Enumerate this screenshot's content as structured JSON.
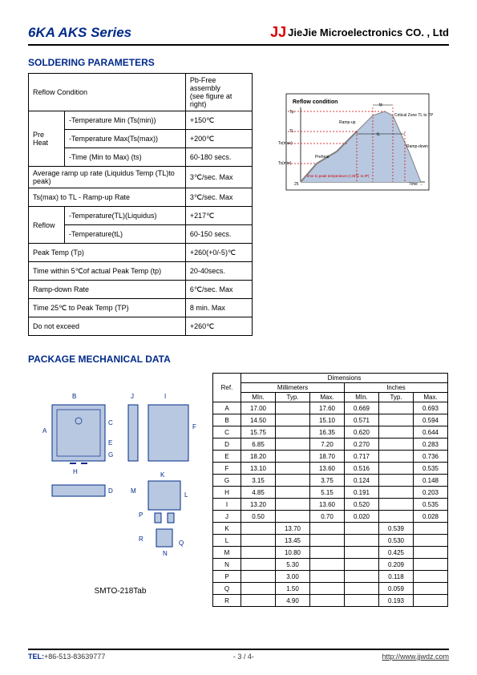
{
  "header": {
    "series": "6KA AKS Series",
    "logo": "JJ",
    "company": "JieJie Microelectronics CO. , Ltd"
  },
  "section1": {
    "title": "SOLDERING PARAMETERS",
    "reflow_cond": "Reflow Condition",
    "pb_free": "Pb-Free assembly\n(see figure at right)",
    "preheat": "Pre Heat",
    "preheat_rows": [
      {
        "l": "-Temperature Min (Ts(min))",
        "v": "+150℃"
      },
      {
        "l": "-Temperature Max(Ts(max))",
        "v": "+200℃"
      },
      {
        "l": "-Time (Min to Max) (ts)",
        "v": "60-180 secs."
      }
    ],
    "avg_ramp": "Average ramp up rate (Liquidus Temp (TL)to peak)",
    "avg_ramp_v": "3℃/sec. Max",
    "ts_ramp": "Ts(max) to TL - Ramp-up Rate",
    "ts_ramp_v": "3℃/sec. Max",
    "reflow": "Reflow",
    "reflow_rows": [
      {
        "l": "-Temperature(TL)(Liquidus)",
        "v": "+217℃"
      },
      {
        "l": "-Temperature(tL)",
        "v": "60-150 secs."
      }
    ],
    "rest": [
      {
        "l": "Peak Temp (Tp)",
        "v": "+260(+0/-5)℃"
      },
      {
        "l": "Time within 5℃of actual Peak Temp (tp)",
        "v": "20-40secs."
      },
      {
        "l": "Ramp-down Rate",
        "v": "6℃/sec. Max"
      },
      {
        "l": "Time 25℃ to Peak Temp (TP)",
        "v": "8 min. Max"
      },
      {
        "l": "Do not exceed",
        "v": "+260℃"
      }
    ],
    "diag": {
      "title": "Reflow condition",
      "labels": [
        "Tp",
        "TL",
        "Ts(max)",
        "Ts(min)",
        "25",
        "Ramp-up",
        "tL",
        "tp",
        "Critical Zone TL to TP",
        "Ramp-down",
        "Preheat",
        "time to peak temperature (t 25℃ to tP)",
        "Time →"
      ]
    }
  },
  "section2": {
    "title": "PACKAGE MECHANICAL DATA",
    "pkg_label": "SMTO-218Tab",
    "dim_hdr": {
      "top": "Dimensions",
      "ref": "Ref.",
      "mm": "Millimeters",
      "in": "Inches",
      "min": "MIn.",
      "typ": "Typ.",
      "max": "Max."
    },
    "rows": [
      {
        "ref": "A",
        "mm_min": "17.00",
        "mm_typ": "",
        "mm_max": "17.60",
        "in_min": "0.669",
        "in_typ": "",
        "in_max": "0.693"
      },
      {
        "ref": "B",
        "mm_min": "14.50",
        "mm_typ": "",
        "mm_max": "15.10",
        "in_min": "0.571",
        "in_typ": "",
        "in_max": "0.594"
      },
      {
        "ref": "C",
        "mm_min": "15.75",
        "mm_typ": "",
        "mm_max": "16.35",
        "in_min": "0.620",
        "in_typ": "",
        "in_max": "0.644"
      },
      {
        "ref": "D",
        "mm_min": "6.85",
        "mm_typ": "",
        "mm_max": "7.20",
        "in_min": "0.270",
        "in_typ": "",
        "in_max": "0.283"
      },
      {
        "ref": "E",
        "mm_min": "18.20",
        "mm_typ": "",
        "mm_max": "18.70",
        "in_min": "0.717",
        "in_typ": "",
        "in_max": "0.736"
      },
      {
        "ref": "F",
        "mm_min": "13.10",
        "mm_typ": "",
        "mm_max": "13.60",
        "in_min": "0.516",
        "in_typ": "",
        "in_max": "0.535"
      },
      {
        "ref": "G",
        "mm_min": "3.15",
        "mm_typ": "",
        "mm_max": "3.75",
        "in_min": "0.124",
        "in_typ": "",
        "in_max": "0.148"
      },
      {
        "ref": "H",
        "mm_min": "4.85",
        "mm_typ": "",
        "mm_max": "5.15",
        "in_min": "0.191",
        "in_typ": "",
        "in_max": "0.203"
      },
      {
        "ref": "I",
        "mm_min": "13.20",
        "mm_typ": "",
        "mm_max": "13.60",
        "in_min": "0.520",
        "in_typ": "",
        "in_max": "0.535"
      },
      {
        "ref": "J",
        "mm_min": "0.50",
        "mm_typ": "",
        "mm_max": "0.70",
        "in_min": "0.020",
        "in_typ": "",
        "in_max": "0.028"
      },
      {
        "ref": "K",
        "mm_min": "",
        "mm_typ": "13.70",
        "mm_max": "",
        "in_min": "",
        "in_typ": "0.539",
        "in_max": ""
      },
      {
        "ref": "L",
        "mm_min": "",
        "mm_typ": "13.45",
        "mm_max": "",
        "in_min": "",
        "in_typ": "0.530",
        "in_max": ""
      },
      {
        "ref": "M",
        "mm_min": "",
        "mm_typ": "10.80",
        "mm_max": "",
        "in_min": "",
        "in_typ": "0.425",
        "in_max": ""
      },
      {
        "ref": "N",
        "mm_min": "",
        "mm_typ": "5.30",
        "mm_max": "",
        "in_min": "",
        "in_typ": "0.209",
        "in_max": ""
      },
      {
        "ref": "P",
        "mm_min": "",
        "mm_typ": "3.00",
        "mm_max": "",
        "in_min": "",
        "in_typ": "0.118",
        "in_max": ""
      },
      {
        "ref": "Q",
        "mm_min": "",
        "mm_typ": "1.50",
        "mm_max": "",
        "in_min": "",
        "in_typ": "0.059",
        "in_max": ""
      },
      {
        "ref": "R",
        "mm_min": "",
        "mm_typ": "4.90",
        "mm_max": "",
        "in_min": "",
        "in_typ": "0.193",
        "in_max": ""
      }
    ],
    "diag_letters": [
      "A",
      "B",
      "C",
      "D",
      "E",
      "F",
      "G",
      "H",
      "I",
      "J",
      "K",
      "L",
      "M",
      "N",
      "P",
      "Q",
      "R"
    ]
  },
  "footer": {
    "tel_label": "TEL:",
    "tel": "+86-513-83639777",
    "page": "- 3  /  4-",
    "url": "http://www.jjwdz.com"
  },
  "colors": {
    "blue": "#002a8a",
    "red": "#d00000",
    "diag_line": "#d00000",
    "diag_gray": "#808080",
    "diag_box": "#000",
    "diag_fill": "#b8c8e0"
  }
}
